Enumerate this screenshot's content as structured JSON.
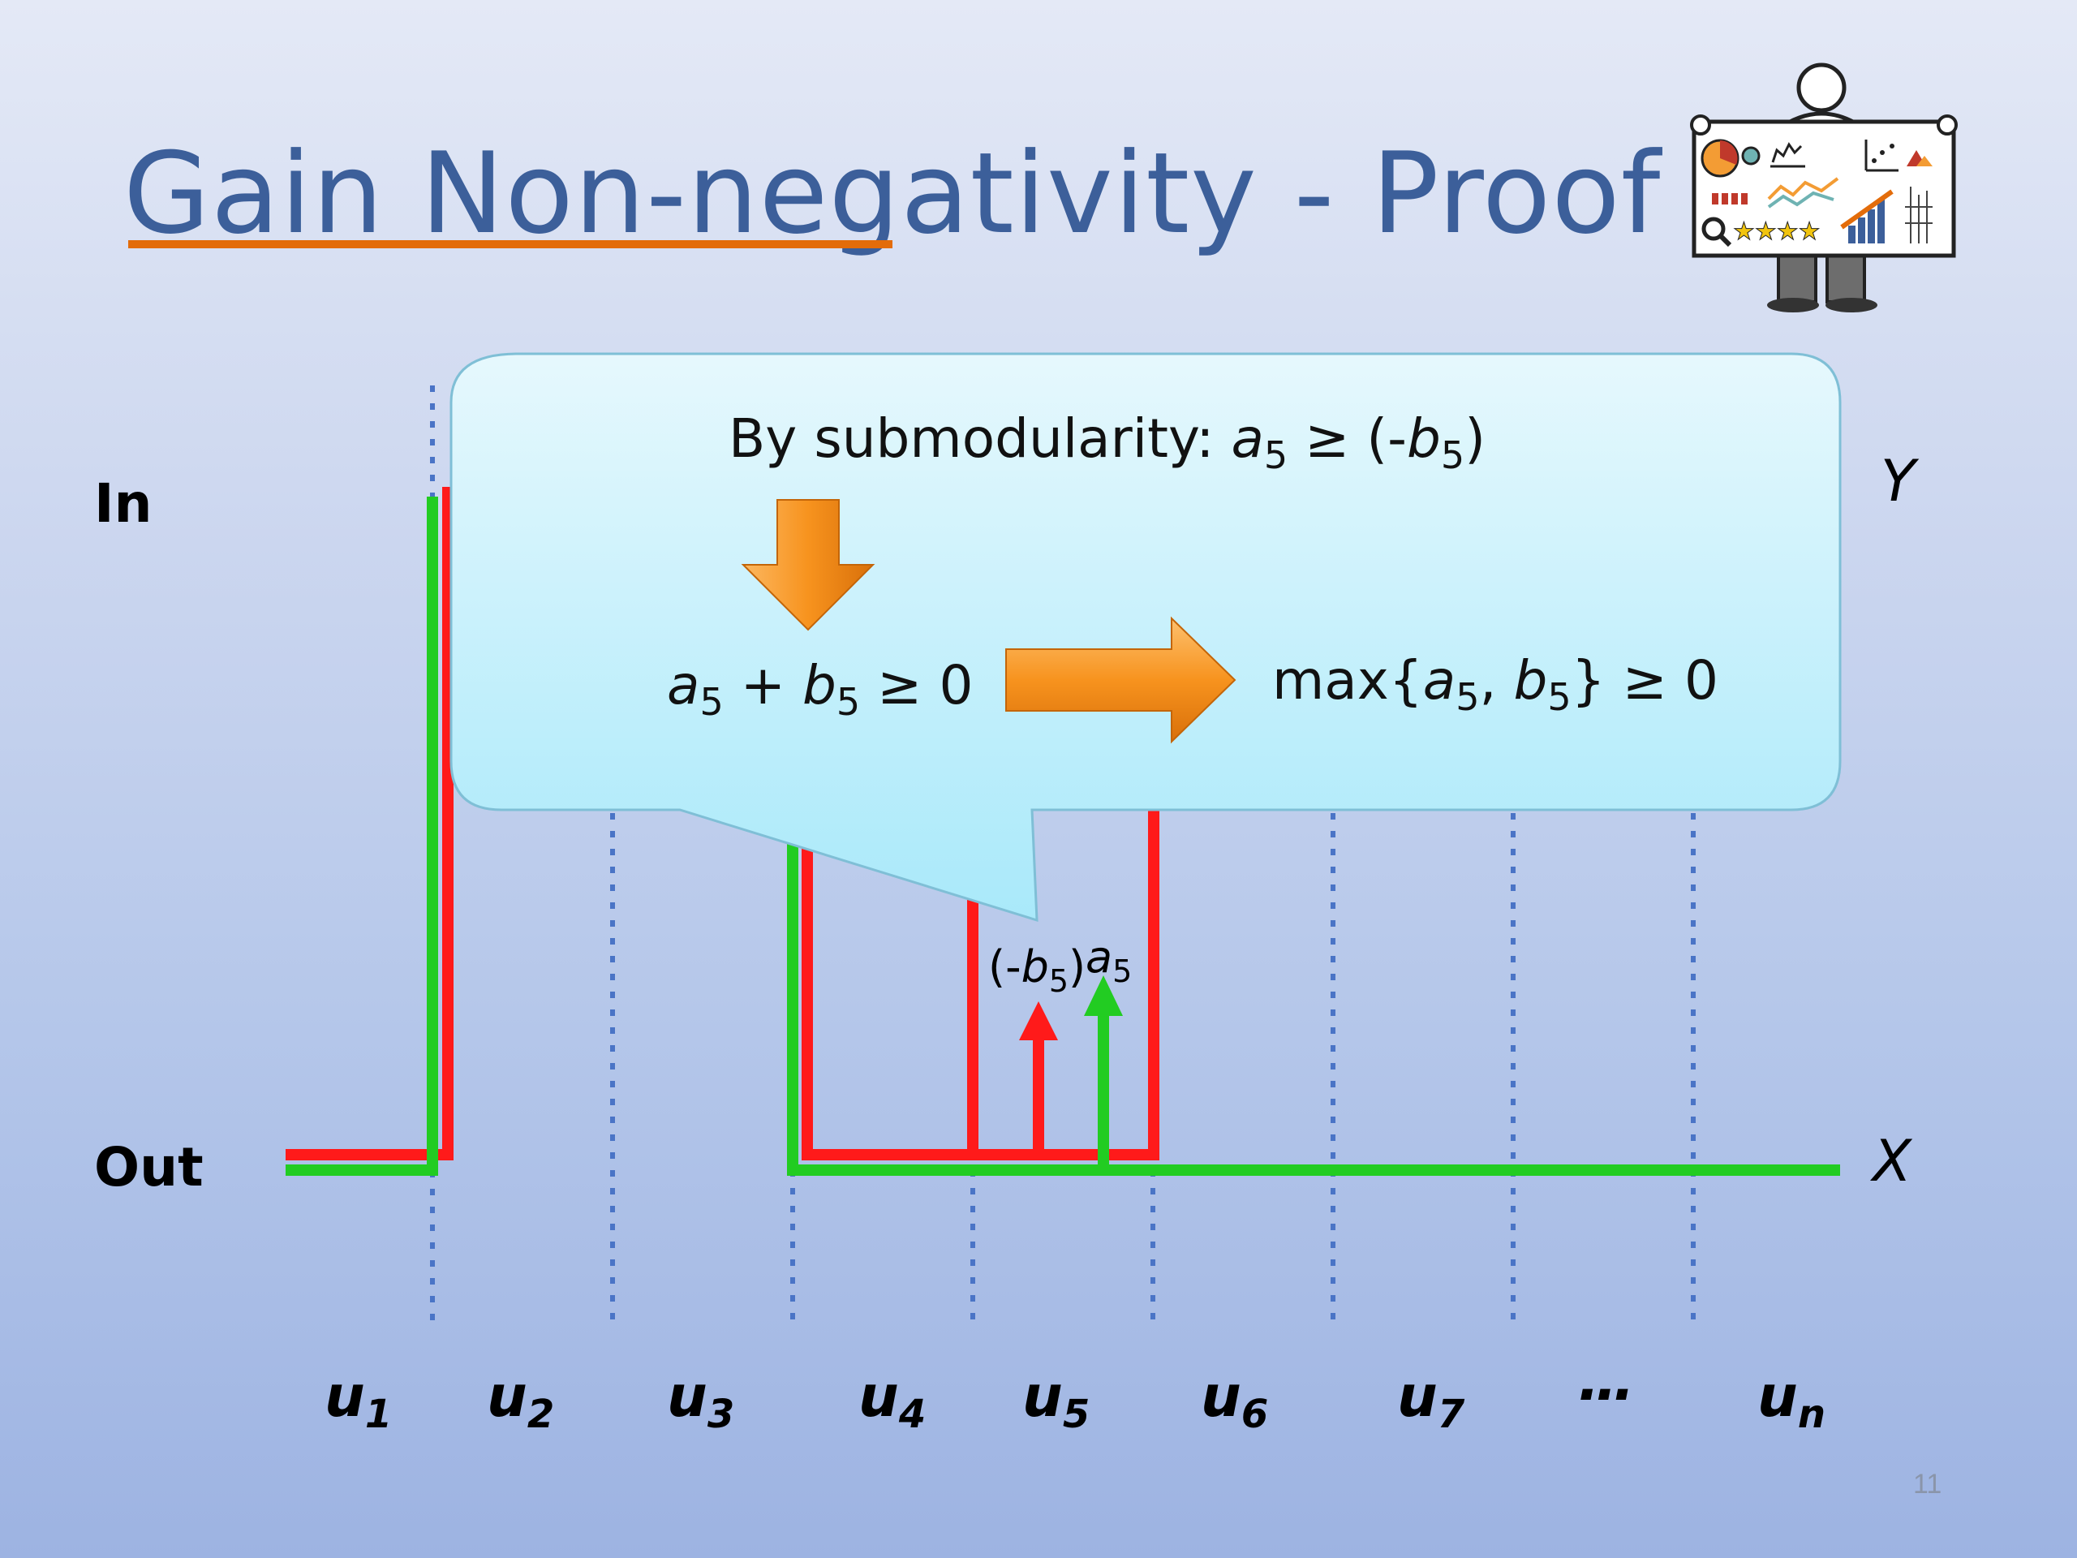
{
  "slide": {
    "title": "Gain Non-negativity - Proof",
    "page_number": "11"
  },
  "axes": {
    "in_label": "In",
    "out_label": "Out",
    "y_set_label": "Y",
    "x_set_label": "X"
  },
  "elements": [
    {
      "var": "u",
      "sub": "1"
    },
    {
      "var": "u",
      "sub": "2"
    },
    {
      "var": "u",
      "sub": "3"
    },
    {
      "var": "u",
      "sub": "4"
    },
    {
      "var": "u",
      "sub": "5"
    },
    {
      "var": "u",
      "sub": "6"
    },
    {
      "var": "u",
      "sub": "7"
    },
    {
      "var": "…",
      "sub": ""
    },
    {
      "var": "u",
      "sub": "n"
    }
  ],
  "gain_labels": {
    "red": {
      "prefix": "(-",
      "var": "b",
      "sub": "5",
      "suffix": ")"
    },
    "green": {
      "var": "a",
      "sub": "5"
    }
  },
  "callout": {
    "line1": {
      "prefix": "By submodularity: ",
      "a": "a",
      "a_sub": "5",
      "rel": " ≥ (-",
      "b": "b",
      "b_sub": "5",
      "close": ")"
    },
    "line2": {
      "a": "a",
      "a_sub": "5",
      "plus": " + ",
      "b": "b",
      "b_sub": "5",
      "rel": " ≥ 0"
    },
    "line3": {
      "prefix": "max{",
      "a": "a",
      "a_sub": "5",
      "comma": ", ",
      "b": "b",
      "b_sub": "5",
      "rel": "} ≥ 0"
    }
  },
  "colors": {
    "title": "#3c5f9a",
    "title_underline": "#e36c0a",
    "red_series": "#ff1a1a",
    "green_series": "#22cc22",
    "dotted_lines": "#4a74c6",
    "callout_fill": "#bdeefb",
    "arrow_orange": "#f7931e"
  }
}
